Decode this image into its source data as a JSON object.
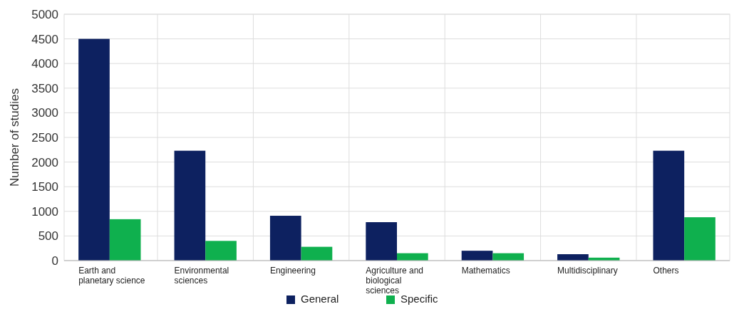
{
  "chart_data": {
    "type": "bar",
    "ylabel": "Number of studies",
    "categories": [
      "Earth and planetary science",
      "Environmental sciences",
      "Engineering",
      "Agriculture and biological sciences",
      "Mathematics",
      "Multidisciplinary",
      "Others"
    ],
    "series": [
      {
        "name": "General",
        "color": "#0d2160",
        "values": [
          4500,
          2230,
          910,
          780,
          200,
          130,
          2230
        ]
      },
      {
        "name": "Specific",
        "color": "#0fb04e",
        "values": [
          840,
          400,
          280,
          150,
          150,
          60,
          880
        ]
      }
    ],
    "ylim": [
      0,
      5000
    ],
    "yticks": [
      0,
      500,
      1000,
      1500,
      2000,
      2500,
      3000,
      3500,
      4000,
      4500,
      5000
    ],
    "grid": "y",
    "legend": "bottom"
  }
}
